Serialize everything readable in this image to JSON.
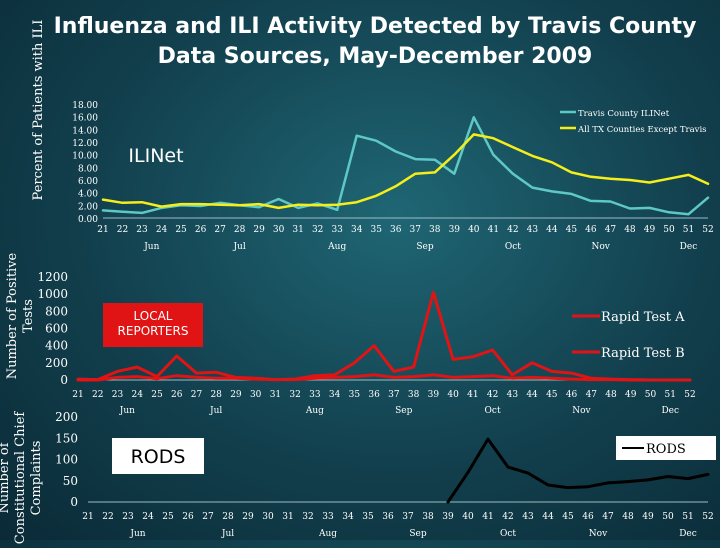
{
  "title": "Influenza and ILI Activity Detected by Travis County Data Sources, May-December 2009",
  "weeks": [
    "21",
    "22",
    "23",
    "24",
    "25",
    "26",
    "27",
    "28",
    "29",
    "30",
    "31",
    "32",
    "33",
    "34",
    "35",
    "36",
    "37",
    "38",
    "39",
    "40",
    "41",
    "42",
    "43",
    "44",
    "45",
    "46",
    "47",
    "48",
    "49",
    "50",
    "51",
    "52"
  ],
  "months": [
    "Jun",
    "Jul",
    "Aug",
    "Sep",
    "Oct",
    "Nov",
    "Dec"
  ],
  "chart_data": [
    {
      "type": "line",
      "ylabel": "Percent of Patients with ILI",
      "box_label": "ILINet",
      "y_ticks": [
        "18.00",
        "16.00",
        "14.00",
        "12.00",
        "10.00",
        "8.00",
        "6.00",
        "4.00",
        "2.00",
        "0.00"
      ],
      "ylim": [
        0,
        18
      ],
      "legend_position": "top-right",
      "series": [
        {
          "name": "Travis County ILINet",
          "color": "#5ec9c4",
          "values": [
            1.2,
            1.0,
            0.8,
            1.6,
            2.0,
            1.9,
            2.4,
            2.0,
            1.7,
            3.0,
            1.6,
            2.3,
            1.3,
            13.0,
            12.2,
            10.5,
            9.3,
            9.2,
            7.0,
            15.9,
            10.0,
            7.0,
            4.8,
            4.2,
            3.8,
            2.7,
            2.6,
            1.5,
            1.6,
            0.9,
            0.6,
            3.2
          ]
        },
        {
          "name": "All TX Counties Except Travis",
          "color": "#f5ee1a",
          "values": [
            2.9,
            2.4,
            2.5,
            1.8,
            2.2,
            2.2,
            2.1,
            2.0,
            2.2,
            1.6,
            2.1,
            2.0,
            2.1,
            2.5,
            3.5,
            5.0,
            7.0,
            7.2,
            10.0,
            13.2,
            12.6,
            11.2,
            9.8,
            8.8,
            7.2,
            6.5,
            6.2,
            6.0,
            5.6,
            6.2,
            6.8,
            5.4
          ]
        }
      ]
    },
    {
      "type": "line",
      "ylabel": "Number of Positive Tests",
      "box_label": "LOCAL REPORTERS",
      "y_ticks": [
        "1200",
        "1000",
        "800",
        "600",
        "400",
        "200",
        "0"
      ],
      "ylim": [
        0,
        1200
      ],
      "legend_position": "right",
      "series": [
        {
          "name": "Rapid Test A",
          "color": "#e01414",
          "values": [
            10,
            5,
            100,
            150,
            40,
            280,
            80,
            90,
            30,
            20,
            5,
            10,
            50,
            60,
            200,
            400,
            100,
            150,
            1020,
            240,
            270,
            350,
            60,
            200,
            100,
            80,
            20,
            10,
            5,
            0,
            0,
            0
          ]
        },
        {
          "name": "Rapid Test B",
          "color": "#e01414",
          "values": [
            0,
            0,
            30,
            40,
            15,
            50,
            30,
            20,
            20,
            10,
            5,
            5,
            20,
            30,
            40,
            60,
            30,
            40,
            60,
            30,
            40,
            50,
            20,
            30,
            20,
            10,
            5,
            5,
            0,
            0,
            0,
            0
          ]
        }
      ]
    },
    {
      "type": "line",
      "ylabel": "Number of Constitutional Chief Complaints",
      "box_label": "RODS",
      "y_ticks": [
        "200",
        "150",
        "100",
        "50",
        "0"
      ],
      "ylim": [
        0,
        200
      ],
      "legend_position": "right",
      "series": [
        {
          "name": "RODS",
          "color": "#000000",
          "values": [
            null,
            null,
            null,
            null,
            null,
            null,
            null,
            null,
            null,
            null,
            null,
            null,
            null,
            null,
            null,
            null,
            null,
            null,
            0,
            70,
            148,
            82,
            68,
            40,
            34,
            36,
            45,
            48,
            52,
            60,
            55,
            65
          ]
        }
      ]
    }
  ]
}
